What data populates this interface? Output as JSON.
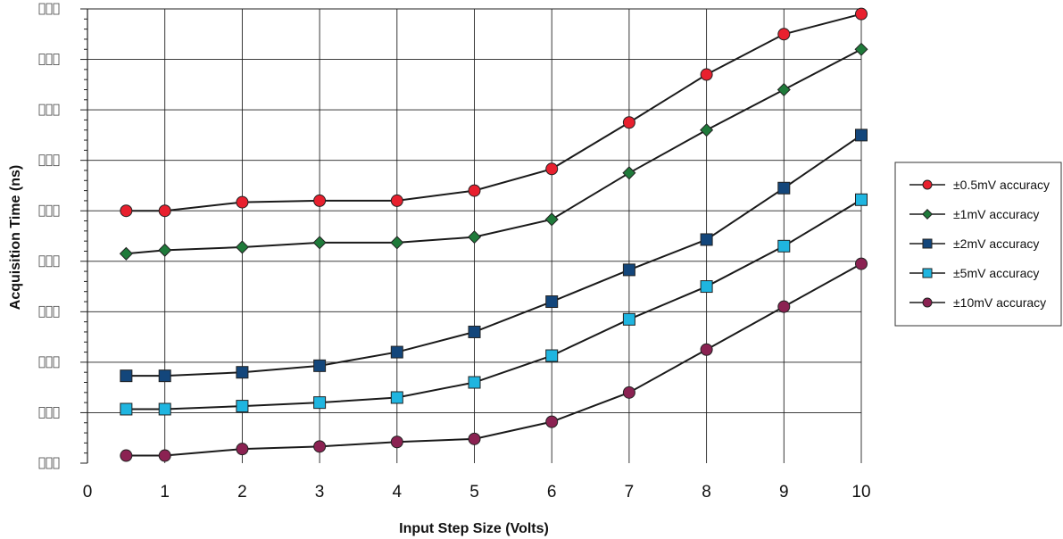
{
  "chart_data": {
    "type": "line",
    "xlabel": "Input Step Size (Volts)",
    "ylabel": "Acquisition Time (ns)",
    "xlim": [
      0,
      10
    ],
    "ylim": [
      0,
      9
    ],
    "x_ticks": [
      "0",
      "1",
      "2",
      "3",
      "4",
      "5",
      "6",
      "7",
      "8",
      "9",
      "10"
    ],
    "y_tick_count": 10,
    "y_tick_labels_legible": false,
    "grid": true,
    "legend_position": "right",
    "x": [
      0.5,
      1,
      2,
      3,
      4,
      5,
      6,
      7,
      8,
      9,
      10
    ],
    "series": [
      {
        "name": "±0.5mV accuracy",
        "marker": "circle",
        "color": "#e8202e",
        "values": [
          5.0,
          5.0,
          5.17,
          5.2,
          5.2,
          5.4,
          5.83,
          6.75,
          7.7,
          8.5,
          8.9
        ]
      },
      {
        "name": "±1mV accuracy",
        "marker": "diamond",
        "color": "#1f7a3a",
        "values": [
          4.15,
          4.22,
          4.28,
          4.37,
          4.37,
          4.48,
          4.83,
          5.75,
          6.6,
          7.4,
          8.2
        ]
      },
      {
        "name": "±2mV accuracy",
        "marker": "square",
        "color": "#13467b",
        "values": [
          1.73,
          1.73,
          1.8,
          1.93,
          2.2,
          2.6,
          3.2,
          3.83,
          4.43,
          5.45,
          6.5
        ]
      },
      {
        "name": "±5mV accuracy",
        "marker": "square",
        "color": "#1fb5e0",
        "values": [
          1.07,
          1.07,
          1.13,
          1.2,
          1.3,
          1.6,
          2.13,
          2.85,
          3.5,
          4.3,
          5.22
        ]
      },
      {
        "name": "±10mV accuracy",
        "marker": "circle",
        "color": "#8b2252",
        "values": [
          0.15,
          0.15,
          0.28,
          0.33,
          0.42,
          0.48,
          0.82,
          1.4,
          2.25,
          3.1,
          3.95
        ]
      }
    ]
  }
}
